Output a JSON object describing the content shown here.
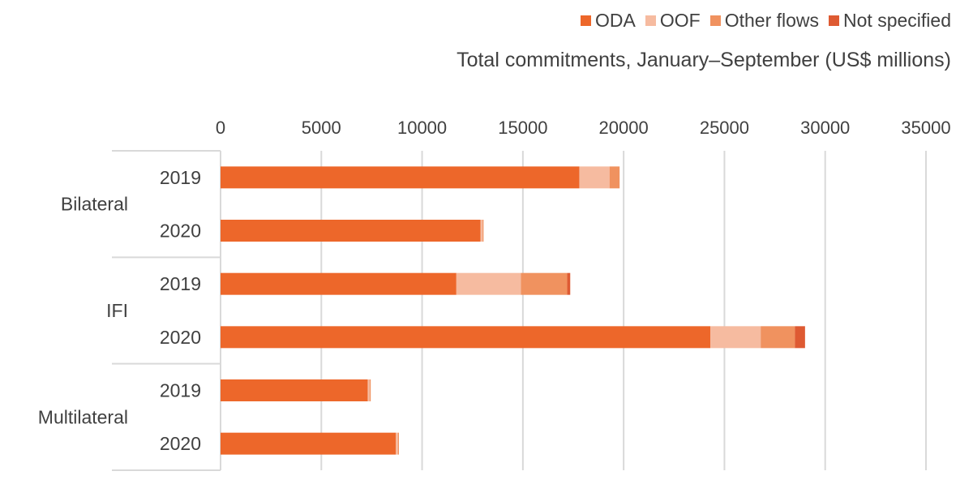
{
  "chart_data": {
    "type": "bar",
    "orientation": "horizontal",
    "stacked": true,
    "title": "Total commitments, January–September (US$ millions)",
    "groups": [
      {
        "label": "Bilateral",
        "categories": [
          "2019",
          "2020"
        ]
      },
      {
        "label": "IFI",
        "categories": [
          "2019",
          "2020"
        ]
      },
      {
        "label": "Multilateral",
        "categories": [
          "2019",
          "2020"
        ]
      }
    ],
    "categories": [
      "Bilateral 2019",
      "Bilateral 2020",
      "IFI 2019",
      "IFI 2020",
      "Multilateral 2019",
      "Multilateral 2020"
    ],
    "series": [
      {
        "name": "ODA",
        "color": "#ED672A",
        "values": [
          17800,
          12900,
          11700,
          24300,
          7300,
          8700
        ]
      },
      {
        "name": "OOF",
        "color": "#F6BBA0",
        "values": [
          1500,
          100,
          3200,
          2500,
          100,
          100
        ]
      },
      {
        "name": "Other flows",
        "color": "#F0925F",
        "values": [
          500,
          50,
          2300,
          1700,
          50,
          50
        ]
      },
      {
        "name": "Not specified",
        "color": "#DE5A32",
        "values": [
          0,
          0,
          150,
          500,
          0,
          0
        ]
      }
    ],
    "xlim": [
      0,
      35000
    ],
    "xticks": [
      0,
      5000,
      10000,
      15000,
      20000,
      25000,
      30000,
      35000
    ],
    "axis_position": "top",
    "grid": true,
    "legend_position": "top-right"
  }
}
